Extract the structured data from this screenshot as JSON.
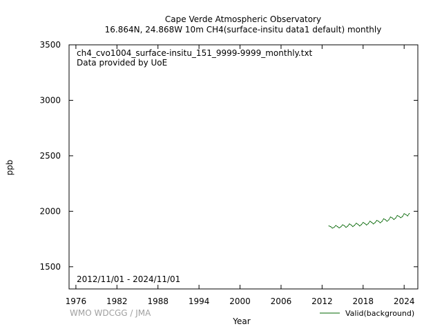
{
  "chart_data": {
    "type": "line",
    "title": "Cape Verde Atmospheric Observatory",
    "subtitle": "16.864N, 24.868W 10m    CH4(surface-insitu data1 default) monthly",
    "xlabel": "Year",
    "ylabel": "ppb",
    "xlim": [
      1975,
      2026
    ],
    "ylim": [
      1300,
      3500
    ],
    "x_ticks": [
      1976,
      1982,
      1988,
      1994,
      2000,
      2006,
      2012,
      2018,
      2024
    ],
    "y_ticks": [
      1500,
      2000,
      2500,
      3000,
      3500
    ],
    "file_label": "ch4_cvo1004_surface-insitu_151_9999-9999_monthly.txt",
    "provider_label": "Data provided by UoE",
    "period_label": "2012/11/01 - 2024/11/01",
    "watermark": "WMO WDCGG / JMA",
    "series": [
      {
        "name": "Valid(background)",
        "color": "#006400",
        "x": [
          2013.0,
          2013.25,
          2013.5,
          2013.75,
          2014.0,
          2014.25,
          2014.5,
          2014.75,
          2015.0,
          2015.25,
          2015.5,
          2015.75,
          2016.0,
          2016.25,
          2016.5,
          2016.75,
          2017.0,
          2017.25,
          2017.5,
          2017.75,
          2018.0,
          2018.25,
          2018.5,
          2018.75,
          2019.0,
          2019.25,
          2019.5,
          2019.75,
          2020.0,
          2020.25,
          2020.5,
          2020.75,
          2021.0,
          2021.25,
          2021.5,
          2021.75,
          2022.0,
          2022.25,
          2022.5,
          2022.75,
          2023.0,
          2023.25,
          2023.5,
          2023.75,
          2024.0,
          2024.25,
          2024.5,
          2024.75
        ],
        "y": [
          1868,
          1862,
          1848,
          1855,
          1872,
          1862,
          1850,
          1860,
          1878,
          1870,
          1855,
          1866,
          1886,
          1876,
          1862,
          1874,
          1892,
          1882,
          1868,
          1880,
          1900,
          1890,
          1876,
          1888,
          1910,
          1900,
          1886,
          1898,
          1918,
          1910,
          1896,
          1908,
          1932,
          1924,
          1910,
          1922,
          1948,
          1940,
          1926,
          1938,
          1962,
          1954,
          1942,
          1952,
          1978,
          1970,
          1958,
          1980
        ]
      }
    ]
  }
}
